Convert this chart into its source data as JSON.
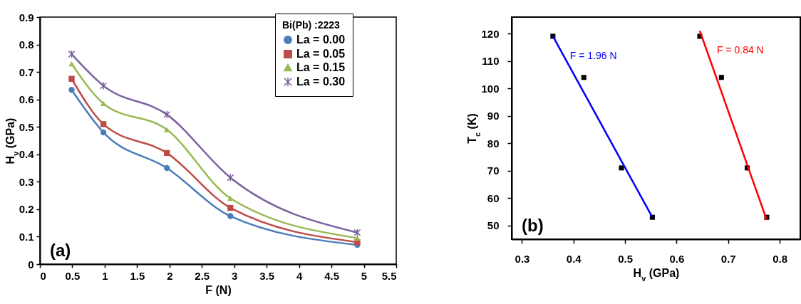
{
  "chart_data": [
    {
      "type": "line",
      "xlabel": "F (N)",
      "ylabel": "H$_{v}$ (GPa)",
      "legend_title": "Bi(Pb) :2223",
      "legend": "top right",
      "grid": false,
      "x": [
        0.49,
        0.98,
        1.96,
        2.94,
        4.9
      ],
      "xlim": [
        0,
        5.5
      ],
      "xticks": [
        0,
        0.5,
        1,
        1.5,
        2,
        2.5,
        3,
        3.5,
        4,
        4.5,
        5,
        5.5
      ],
      "ylim": [
        0,
        0.9
      ],
      "yticks": [
        0,
        0.1,
        0.2,
        0.3,
        0.4,
        0.5,
        0.6,
        0.7,
        0.8,
        0.9
      ],
      "annotations": [
        "(a)"
      ],
      "series": [
        {
          "name": "La = 0.00",
          "color": "#4a7ebb",
          "marker": "circle",
          "values": [
            0.635,
            0.48,
            0.35,
            0.175,
            0.07
          ]
        },
        {
          "name": "La = 0.05",
          "color": "#be4b48",
          "marker": "square",
          "values": [
            0.675,
            0.51,
            0.405,
            0.205,
            0.08
          ]
        },
        {
          "name": "La = 0.15",
          "color": "#98b954",
          "marker": "triangle",
          "values": [
            0.73,
            0.585,
            0.49,
            0.24,
            0.095
          ]
        },
        {
          "name": "La = 0.30",
          "color": "#7d60a0",
          "marker": "cross",
          "values": [
            0.765,
            0.65,
            0.545,
            0.315,
            0.115
          ]
        }
      ]
    },
    {
      "type": "scatter",
      "xlabel": "H$_{v}$   (GPa)",
      "ylabel": "T$_{c}$   (K)",
      "legend": false,
      "grid": false,
      "xlim": [
        0.28,
        0.84
      ],
      "xticks": [
        0.3,
        0.4,
        0.5,
        0.6,
        0.7,
        0.8
      ],
      "ylim": [
        45,
        126
      ],
      "yticks": [
        50,
        60,
        70,
        80,
        90,
        100,
        110,
        120
      ],
      "marker": "square",
      "annotations": [
        "(b)",
        "F = 1.96 N",
        "F = 0.84 N"
      ],
      "series": [
        {
          "color": "#000000",
          "x": [
            0.36,
            0.42,
            0.493,
            0.553
          ],
          "values": [
            119,
            104,
            71,
            53
          ]
        },
        {
          "color": "#000000",
          "x": [
            0.645,
            0.687,
            0.737,
            0.775
          ],
          "values": [
            119,
            104,
            71,
            53
          ]
        },
        {
          "type": "line",
          "marker": "none",
          "color": "#0000ff",
          "x": [
            0.36,
            0.553
          ],
          "values": [
            119,
            53
          ]
        },
        {
          "type": "line",
          "marker": "none",
          "color": "#ff0000",
          "x": [
            0.645,
            0.775
          ],
          "values": [
            121,
            52
          ]
        }
      ]
    }
  ]
}
